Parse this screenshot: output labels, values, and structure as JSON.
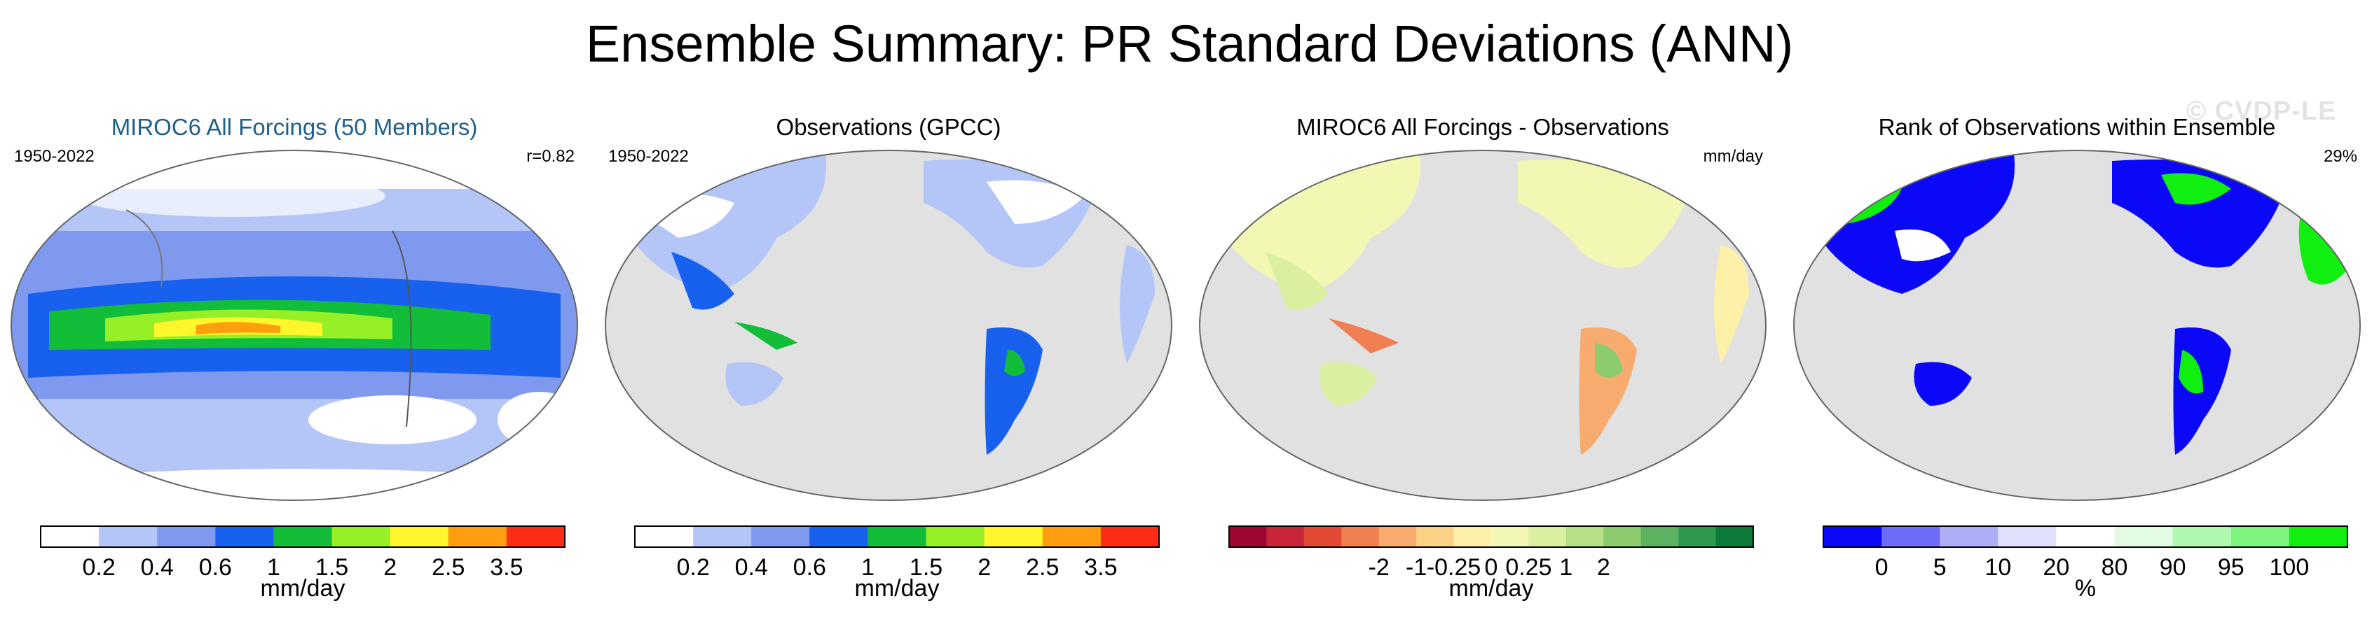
{
  "title": "Ensemble Summary: PR Standard Deviations (ANN)",
  "watermark": "© CVDP-LE",
  "panels": [
    {
      "title": "MIROC6 All Forcings (50 Members)",
      "title_color": "#1f5f8b",
      "left_note": "1950-2022",
      "right_note": "r=0.82",
      "unit": "mm/day",
      "colors": [
        "#ffffff",
        "#b4c5f7",
        "#7f99ef",
        "#1761ee",
        "#12bd3a",
        "#96f025",
        "#fff62b",
        "#ff9e0e",
        "#fe2b16"
      ],
      "ticks": [
        "0.2",
        "0.4",
        "0.6",
        "1",
        "1.5",
        "2",
        "2.5",
        "3.5"
      ]
    },
    {
      "title": "Observations (GPCC)",
      "title_color": "#000000",
      "left_note": "1950-2022",
      "right_note": "",
      "unit": "mm/day",
      "colors": [
        "#ffffff",
        "#b4c5f7",
        "#7f99ef",
        "#1761ee",
        "#12bd3a",
        "#96f025",
        "#fff62b",
        "#ff9e0e",
        "#fe2b16"
      ],
      "ticks": [
        "0.2",
        "0.4",
        "0.6",
        "1",
        "1.5",
        "2",
        "2.5",
        "3.5"
      ]
    },
    {
      "title": "MIROC6 All Forcings - Observations",
      "title_color": "#000000",
      "left_note": "",
      "right_note": "mm/day",
      "unit": "mm/day",
      "colors": [
        "#9e0530",
        "#c8253a",
        "#e34a33",
        "#f07f52",
        "#f8ab6e",
        "#fcd287",
        "#fdf0a8",
        "#f2f7b4",
        "#dbefa1",
        "#b6df86",
        "#8ccc6f",
        "#5db25f",
        "#2f9a4f",
        "#0c7a3a"
      ],
      "ticks": [
        "-2",
        "-1",
        "-0.25",
        "0",
        "0.25",
        "1",
        "2"
      ]
    },
    {
      "title": "Rank of Observations within Ensemble",
      "title_color": "#000000",
      "left_note": "",
      "right_note": "29%",
      "unit": "%",
      "colors": [
        "#0a08f6",
        "#6d6cf8",
        "#aeaef8",
        "#e0e0fb",
        "#ffffff",
        "#e3fbe3",
        "#b0f7b0",
        "#7df47d",
        "#10ef10"
      ],
      "ticks": [
        "0",
        "5",
        "10",
        "20",
        "80",
        "90",
        "95",
        "100"
      ]
    }
  ]
}
